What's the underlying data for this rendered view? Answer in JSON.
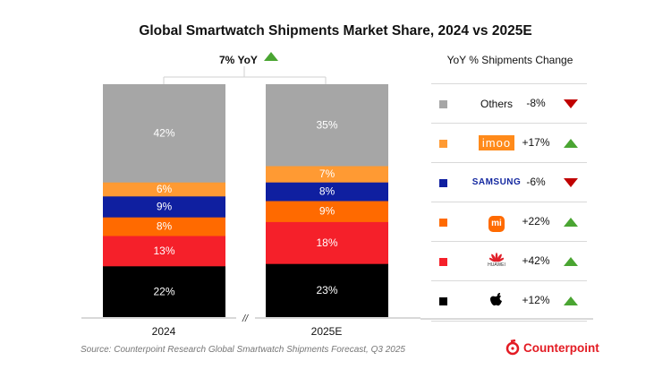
{
  "chart_data": {
    "type": "bar",
    "stacked": true,
    "title": "Global Smartwatch Shipments Market Share, 2024 vs 2025E",
    "categories": [
      "2024",
      "2025E"
    ],
    "ylim": [
      0,
      100
    ],
    "series": [
      {
        "name": "Apple",
        "color": "#000000",
        "values": [
          22,
          23
        ]
      },
      {
        "name": "Huawei",
        "color": "#f5202a",
        "values": [
          13,
          18
        ]
      },
      {
        "name": "Xiaomi",
        "color": "#ff6a00",
        "values": [
          8,
          9
        ]
      },
      {
        "name": "Samsung",
        "color": "#0f1fa0",
        "values": [
          9,
          8
        ]
      },
      {
        "name": "imoo",
        "color": "#ff9a33",
        "values": [
          6,
          7
        ]
      },
      {
        "name": "Others",
        "color": "#a6a6a6",
        "values": [
          42,
          35
        ]
      }
    ],
    "annotation": {
      "text": "7% YoY",
      "direction": "up"
    },
    "axis_break": "//"
  },
  "legend": {
    "title": "YoY % Shipments Change",
    "rows": [
      {
        "brand": "Others",
        "logo_text": "Others",
        "change": "-8%",
        "direction": "down",
        "color": "#a6a6a6"
      },
      {
        "brand": "imoo",
        "logo_text": "imoo",
        "change": "+17%",
        "direction": "up",
        "color": "#ff9a33"
      },
      {
        "brand": "Samsung",
        "logo_text": "SAMSUNG",
        "change": "-6%",
        "direction": "down",
        "color": "#0f1fa0"
      },
      {
        "brand": "Xiaomi",
        "logo_text": "mi",
        "change": "+22%",
        "direction": "up",
        "color": "#ff6a00"
      },
      {
        "brand": "Huawei",
        "logo_text": "HUAWEI",
        "change": "+42%",
        "direction": "up",
        "color": "#f5202a"
      },
      {
        "brand": "Apple",
        "logo_text": "",
        "change": "+12%",
        "direction": "up",
        "color": "#000000"
      }
    ]
  },
  "source": "Source: Counterpoint Research Global Smartwatch Shipments Forecast, Q3 2025",
  "brand": "Counterpoint"
}
